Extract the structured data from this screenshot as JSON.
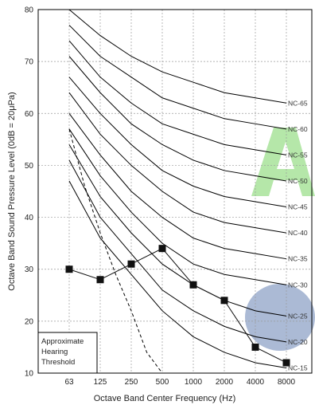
{
  "chart_data": {
    "type": "line",
    "xlabel": "Octave Band Center Frequency (Hz)",
    "ylabel": "Octave Band Sound Pressure Level (0dB = 20μPa)",
    "x_ticks": [
      "63",
      "125",
      "250",
      "500",
      "1000",
      "2000",
      "4000",
      "8000"
    ],
    "y_ticks": [
      10,
      20,
      30,
      40,
      50,
      60,
      70,
      80
    ],
    "ylim": [
      10,
      80
    ],
    "grid": true,
    "nc_curves": [
      {
        "name": "NC-15",
        "values": [
          47,
          36,
          29,
          22,
          17,
          14,
          12,
          11
        ]
      },
      {
        "name": "NC-20",
        "values": [
          51,
          40,
          33,
          26,
          22,
          19,
          17,
          16
        ]
      },
      {
        "name": "NC-25",
        "values": [
          54,
          44,
          37,
          31,
          27,
          24,
          22,
          21
        ]
      },
      {
        "name": "NC-30",
        "values": [
          57,
          48,
          41,
          35,
          31,
          29,
          28,
          27
        ]
      },
      {
        "name": "NC-35",
        "values": [
          60,
          52,
          45,
          40,
          36,
          34,
          33,
          32
        ]
      },
      {
        "name": "NC-40",
        "values": [
          64,
          56,
          50,
          45,
          41,
          39,
          38,
          37
        ]
      },
      {
        "name": "NC-45",
        "values": [
          67,
          60,
          54,
          49,
          46,
          44,
          43,
          42
        ]
      },
      {
        "name": "NC-50",
        "values": [
          71,
          64,
          58,
          54,
          51,
          49,
          48,
          47
        ]
      },
      {
        "name": "NC-55",
        "values": [
          74,
          67,
          62,
          58,
          56,
          54,
          53,
          52
        ]
      },
      {
        "name": "NC-60",
        "values": [
          77,
          71,
          67,
          63,
          61,
          59,
          58,
          57
        ]
      },
      {
        "name": "NC-65",
        "values": [
          80,
          75,
          71,
          68,
          66,
          64,
          63,
          62
        ]
      }
    ],
    "measured": {
      "values": [
        30,
        28,
        31,
        34,
        27,
        24,
        15,
        12
      ]
    },
    "hearing_threshold": {
      "x": [
        0,
        0.5,
        1,
        1.5,
        2,
        2.5,
        3
      ],
      "values": [
        57,
        46,
        37,
        29,
        22,
        14,
        10
      ]
    },
    "annotation": "Approximate Hearing Threshold"
  },
  "colors": {
    "curve": "#000000",
    "grid": "#9a9a9a",
    "marker": "#111111",
    "watermark_green": "#a8e39a",
    "watermark_blue": "#8fa3c7"
  }
}
